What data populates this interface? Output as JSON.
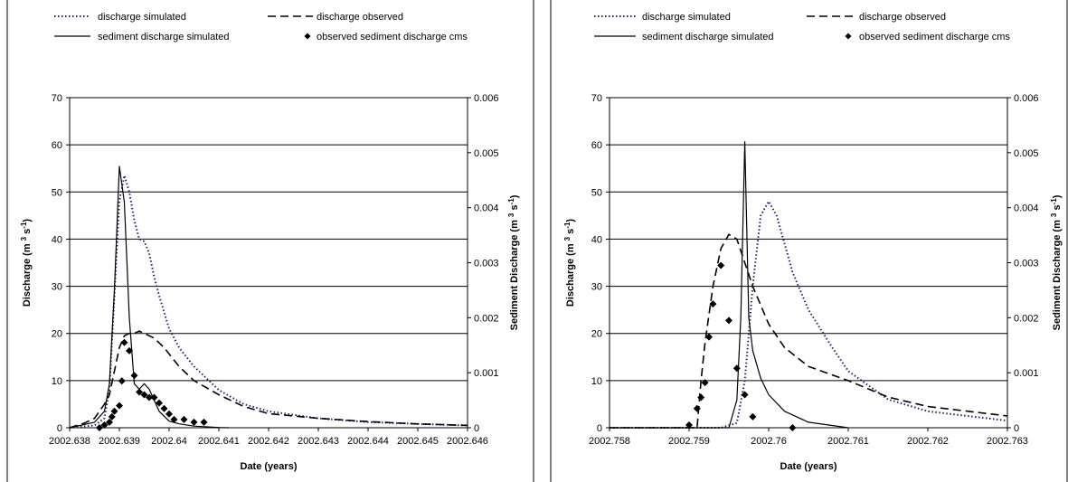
{
  "chart_data": [
    {
      "type": "line",
      "xlabel": "Date (years)",
      "ylabel": "Discharge (m 3 s-1)",
      "ylabel_right": "Sediment Discharge (m 3 s-1)",
      "xlim": [
        2002.638,
        2002.646
      ],
      "ylim": [
        0,
        70
      ],
      "ylim_right": [
        0,
        0.006
      ],
      "x_ticks": [
        "2002.638",
        "2002.639",
        "2002.64",
        "2002.641",
        "2002.642",
        "2002.643",
        "2002.644",
        "2002.645",
        "2002.646"
      ],
      "y_ticks": [
        "0",
        "10",
        "20",
        "30",
        "40",
        "50",
        "60",
        "70"
      ],
      "y_ticks_right": [
        "0",
        "0.001",
        "0.002",
        "0.003",
        "0.004",
        "0.005",
        "0.006"
      ],
      "grid": "horizontal",
      "legend": "top",
      "series": [
        {
          "name": "discharge simulated",
          "style": "dotted",
          "axis": "left",
          "x": [
            2002.638,
            2002.6385,
            2002.6387,
            2002.6388,
            2002.6389,
            2002.639,
            2002.6391,
            2002.6392,
            2002.6393,
            2002.6394,
            2002.6395,
            2002.6396,
            2002.6397,
            2002.6398,
            2002.64,
            2002.6402,
            2002.6405,
            2002.641,
            2002.6415,
            2002.642,
            2002.643,
            2002.644,
            2002.645,
            2002.646
          ],
          "y": [
            0,
            0.5,
            2,
            8,
            28,
            48,
            53.5,
            50,
            44,
            40,
            39.5,
            37,
            32,
            28,
            21,
            17,
            13,
            8,
            5,
            3.5,
            2,
            1.2,
            0.8,
            0.5
          ]
        },
        {
          "name": "discharge observed",
          "style": "dashed",
          "axis": "left",
          "x": [
            2002.638,
            2002.6383,
            2002.6385,
            2002.6387,
            2002.6388,
            2002.6389,
            2002.639,
            2002.6391,
            2002.6392,
            2002.6393,
            2002.6394,
            2002.6395,
            2002.6397,
            2002.6399,
            2002.6402,
            2002.6405,
            2002.641,
            2002.6415,
            2002.642,
            2002.643,
            2002.644,
            2002.645,
            2002.646
          ],
          "y": [
            0,
            1,
            2,
            5,
            7,
            12,
            17,
            19.5,
            20,
            20,
            20.5,
            20,
            19,
            17,
            13,
            10,
            7,
            4.5,
            3,
            2,
            1.3,
            0.8,
            0.5
          ]
        },
        {
          "name": "sediment discharge simulated",
          "style": "solid",
          "axis": "right",
          "x": [
            2002.638,
            2002.6385,
            2002.6387,
            2002.6388,
            2002.6389,
            2002.639,
            2002.6391,
            2002.6392,
            2002.6393,
            2002.6394,
            2002.6395,
            2002.6396,
            2002.6397,
            2002.6398,
            2002.64,
            2002.6402,
            2002.6405,
            2002.641,
            2002.6412
          ],
          "y": [
            0,
            0.0001,
            0.0003,
            0.0008,
            0.0025,
            0.00475,
            0.0041,
            0.002,
            0.0008,
            0.0007,
            0.0008,
            0.0007,
            0.0005,
            0.0003,
            0.00012,
            7e-05,
            3e-05,
            5e-06,
            0
          ]
        },
        {
          "name": "observed sediment discharge cms",
          "style": "marker-diamond",
          "axis": "right",
          "x": [
            2002.6386,
            2002.6387,
            2002.6388,
            2002.63885,
            2002.6389,
            2002.639,
            2002.63905,
            2002.6391,
            2002.6392,
            2002.6393,
            2002.6394,
            2002.6395,
            2002.6396,
            2002.6397,
            2002.6398,
            2002.6399,
            2002.64,
            2002.6401,
            2002.6403,
            2002.6405,
            2002.6407
          ],
          "y": [
            0,
            5e-05,
            0.0001,
            0.0002,
            0.0003,
            0.0004,
            0.00085,
            0.00155,
            0.0014,
            0.00095,
            0.00065,
            0.0006,
            0.00055,
            0.00055,
            0.00045,
            0.00035,
            0.00025,
            0.00015,
            0.00015,
            0.0001,
            0.0001
          ]
        }
      ]
    },
    {
      "type": "line",
      "xlabel": "Date (years)",
      "ylabel": "Discharge (m 3 s-1)",
      "ylabel_right": "Sediment Discharge (m 3 s-1)",
      "xlim": [
        2002.758,
        2002.763
      ],
      "ylim": [
        0,
        70
      ],
      "ylim_right": [
        0,
        0.006
      ],
      "x_ticks": [
        "2002.758",
        "2002.759",
        "2002.76",
        "2002.761",
        "2002.762",
        "2002.763"
      ],
      "y_ticks": [
        "0",
        "10",
        "20",
        "30",
        "40",
        "50",
        "60",
        "70"
      ],
      "y_ticks_right": [
        "0",
        "0.001",
        "0.002",
        "0.003",
        "0.004",
        "0.005",
        "0.006"
      ],
      "grid": "horizontal",
      "legend": "top",
      "series": [
        {
          "name": "discharge simulated",
          "style": "dotted",
          "axis": "left",
          "x": [
            2002.758,
            2002.7594,
            2002.7596,
            2002.7597,
            2002.7598,
            2002.7599,
            2002.76,
            2002.7601,
            2002.7603,
            2002.7605,
            2002.7608,
            2002.761,
            2002.7615,
            2002.762,
            2002.763
          ],
          "y": [
            0,
            0,
            1,
            10,
            30,
            45,
            48,
            45,
            33,
            25,
            17,
            12,
            6,
            3.5,
            1.5
          ]
        },
        {
          "name": "discharge observed",
          "style": "dashed",
          "axis": "left",
          "x": [
            2002.758,
            2002.7591,
            2002.75915,
            2002.7592,
            2002.7593,
            2002.7594,
            2002.7595,
            2002.7596,
            2002.7597,
            2002.7598,
            2002.76,
            2002.7602,
            2002.7605,
            2002.761,
            2002.7615,
            2002.762,
            2002.763
          ],
          "y": [
            0,
            0,
            10,
            18,
            30,
            38,
            41,
            40,
            35,
            30,
            22,
            17,
            13,
            10,
            6.5,
            4.5,
            2.5
          ]
        },
        {
          "name": "sediment discharge simulated",
          "style": "solid",
          "axis": "right",
          "x": [
            2002.758,
            2002.7595,
            2002.7596,
            2002.75965,
            2002.7597,
            2002.75975,
            2002.7598,
            2002.7599,
            2002.76,
            2002.7602,
            2002.7605,
            2002.761
          ],
          "y": [
            0,
            0,
            0.0005,
            0.002,
            0.0052,
            0.002,
            0.0014,
            0.0009,
            0.0006,
            0.0003,
            0.0001,
            0
          ]
        },
        {
          "name": "observed sediment discharge cms",
          "style": "marker-diamond",
          "axis": "right",
          "x": [
            2002.759,
            2002.7591,
            2002.75915,
            2002.7592,
            2002.75925,
            2002.7593,
            2002.7594,
            2002.7595,
            2002.7596,
            2002.7597,
            2002.7598,
            2002.7603
          ],
          "y": [
            5e-05,
            0.00035,
            0.00055,
            0.00082,
            0.00165,
            0.00225,
            0.00295,
            0.00195,
            0.00108,
            0.0006,
            0.0002,
            0
          ]
        }
      ]
    }
  ]
}
